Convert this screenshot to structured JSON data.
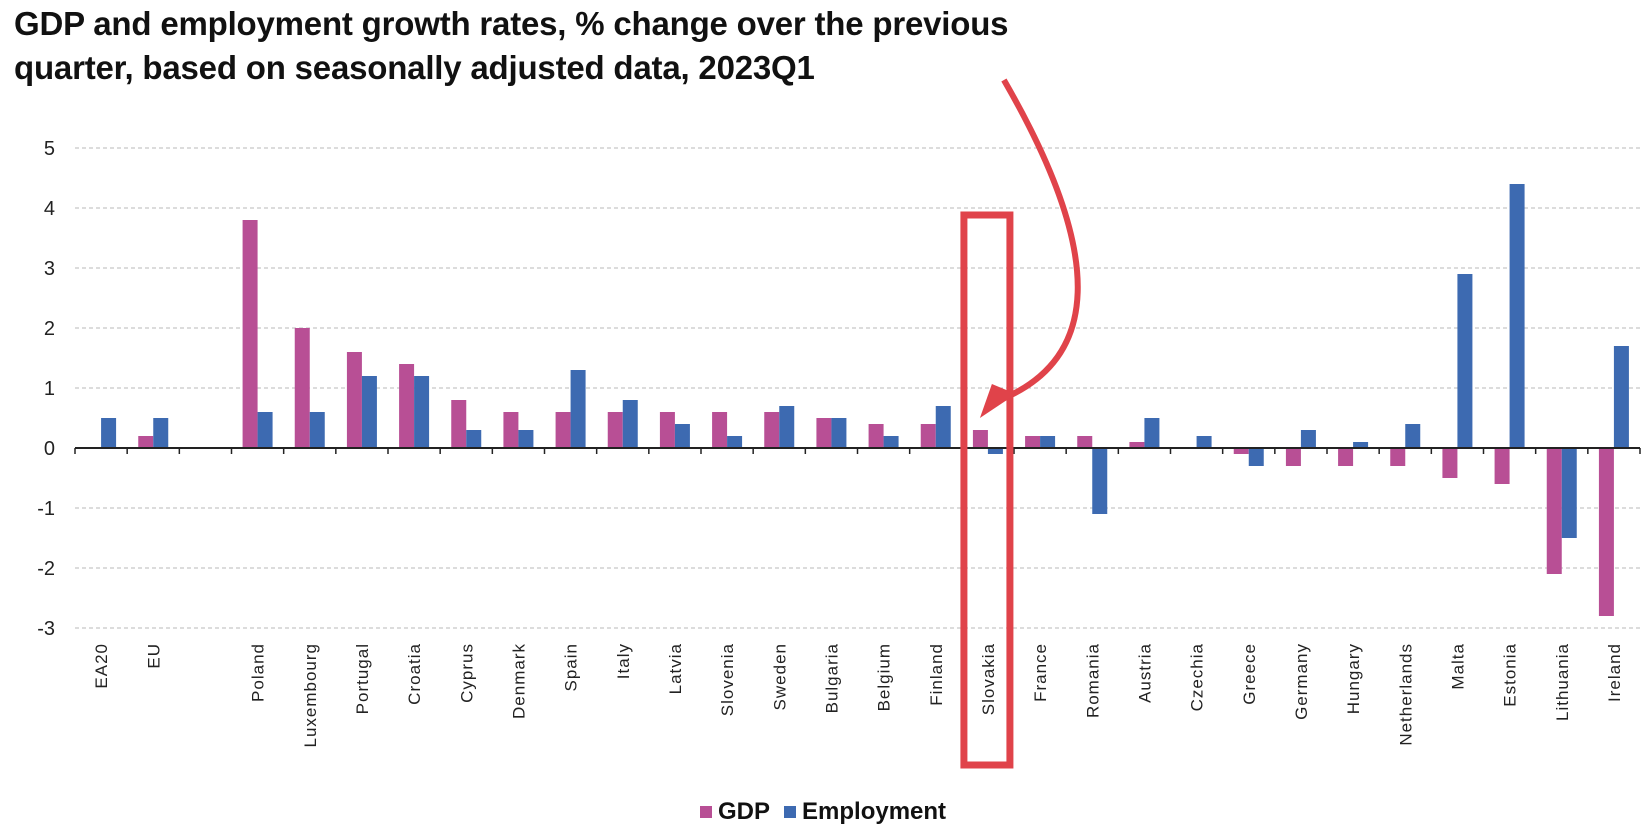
{
  "chart_data": {
    "type": "bar",
    "title": "GDP and employment growth rates, % change over the previous quarter, based on seasonally adjusted data, 2023Q1",
    "title_lines": [
      "GDP and employment growth rates, % change over the previous",
      "quarter, based on seasonally adjusted data, 2023Q1"
    ],
    "xlabel": "",
    "ylabel": "",
    "ylim": [
      -3,
      5
    ],
    "yticks": [
      5,
      4,
      3,
      2,
      1,
      0,
      -1,
      -2,
      -3
    ],
    "grid": true,
    "legend_position": "bottom-center",
    "categories": [
      "EA20",
      "EU",
      "",
      "Poland",
      "Luxembourg",
      "Portugal",
      "Croatia",
      "Cyprus",
      "Denmark",
      "Spain",
      "Italy",
      "Latvia",
      "Slovenia",
      "Sweden",
      "Bulgaria",
      "Belgium",
      "Finland",
      "Slovakia",
      "France",
      "Romania",
      "Austria",
      "Czechia",
      "Greece",
      "Germany",
      "Hungary",
      "Netherlands",
      "Malta",
      "Estonia",
      "Lithuania",
      "Ireland"
    ],
    "series": [
      {
        "name": "GDP",
        "color": "#b84f95",
        "values": [
          0.0,
          0.2,
          null,
          3.8,
          2.0,
          1.6,
          1.4,
          0.8,
          0.6,
          0.6,
          0.6,
          0.6,
          0.6,
          0.6,
          0.5,
          0.4,
          0.4,
          0.3,
          0.2,
          0.2,
          0.1,
          0.0,
          -0.1,
          -0.3,
          -0.3,
          -0.3,
          -0.5,
          -0.6,
          -2.1,
          -2.8
        ]
      },
      {
        "name": "Employment",
        "color": "#3d6ab1",
        "values": [
          0.5,
          0.5,
          null,
          0.6,
          0.6,
          1.2,
          1.2,
          0.3,
          0.3,
          1.3,
          0.8,
          0.4,
          0.2,
          0.7,
          0.5,
          0.2,
          0.7,
          -0.1,
          0.2,
          -1.1,
          0.5,
          0.2,
          -0.3,
          0.3,
          0.1,
          0.4,
          2.9,
          4.4,
          -1.5,
          1.7
        ]
      }
    ],
    "annotations": [
      {
        "type": "highlight-box",
        "target": "Slovakia",
        "color": "#e0434a"
      },
      {
        "type": "curved-arrow",
        "target": "Slovakia",
        "color": "#e0434a"
      }
    ]
  },
  "legend": {
    "items": [
      {
        "label": "GDP",
        "color": "#b84f95"
      },
      {
        "label": "Employment",
        "color": "#3d6ab1"
      }
    ]
  }
}
